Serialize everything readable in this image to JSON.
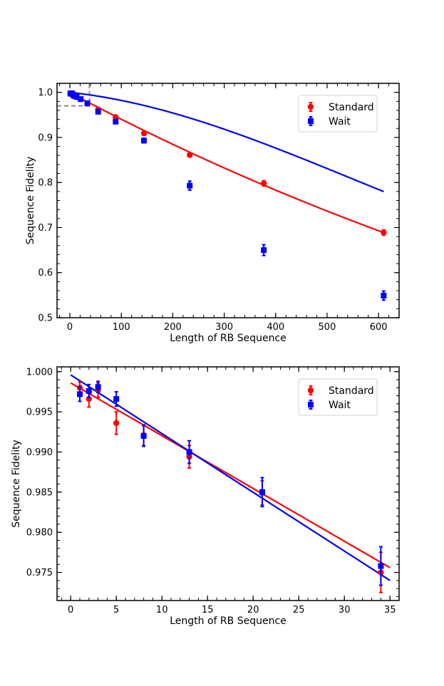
{
  "chart_data": [
    {
      "type": "scatter",
      "xlabel": "Length of RB Sequence",
      "ylabel": "Sequence Fidelity",
      "xlim": [
        -25,
        640
      ],
      "ylim": [
        0.5,
        1.02
      ],
      "xticks": [
        0,
        100,
        200,
        300,
        400,
        500,
        600
      ],
      "yticks": [
        0.5,
        0.6,
        0.7,
        0.8,
        0.9,
        1.0
      ],
      "xtick_labels": [
        "0",
        "100",
        "200",
        "300",
        "400",
        "500",
        "600"
      ],
      "ytick_labels": [
        "0.5",
        "0.6",
        "0.7",
        "0.8",
        "0.9",
        "1.0"
      ],
      "inset_marker": {
        "x_max": 38,
        "y_min": 0.97
      },
      "legend": {
        "position": "top-right",
        "entries": [
          "Standard",
          "Wait"
        ]
      },
      "series": [
        {
          "name": "Standard",
          "color": "#ff0000",
          "marker": "circle",
          "x": [
            1,
            2,
            3,
            5,
            8,
            13,
            21,
            34,
            55,
            89,
            144,
            233,
            377,
            610
          ],
          "y": [
            0.998,
            0.9967,
            0.9977,
            0.9936,
            0.992,
            0.9895,
            0.985,
            0.975,
            0.962,
            0.945,
            0.909,
            0.861,
            0.798,
            0.689
          ],
          "err": [
            0.002,
            0.002,
            0.002,
            0.002,
            0.002,
            0.002,
            0.002,
            0.003,
            0.003,
            0.004,
            0.004,
            0.004,
            0.006,
            0.006
          ],
          "fit": {
            "kind": "exponential",
            "A": 0.9995,
            "p": 0.99939
          }
        },
        {
          "name": "Wait",
          "color": "#0000ff",
          "marker": "square",
          "x": [
            1,
            2,
            3,
            5,
            8,
            13,
            21,
            34,
            55,
            89,
            144,
            233,
            377,
            610
          ],
          "y": [
            0.9972,
            0.9976,
            0.9981,
            0.9966,
            0.992,
            0.99,
            0.985,
            0.9758,
            0.957,
            0.935,
            0.893,
            0.793,
            0.65,
            0.549
          ],
          "err": [
            0.002,
            0.002,
            0.002,
            0.002,
            0.002,
            0.002,
            0.002,
            0.003,
            0.004,
            0.004,
            0.005,
            0.01,
            0.012,
            0.01
          ],
          "fit": {
            "kind": "gaussian_decay",
            "a": 0.5,
            "b": 0.5,
            "k": 1.15e-06,
            "r": 0.99975
          }
        }
      ]
    },
    {
      "type": "scatter",
      "xlabel": "Length of RB Sequence",
      "ylabel": "Sequence Fidelity",
      "xlim": [
        -1.5,
        36
      ],
      "ylim": [
        0.9715,
        1.0006
      ],
      "xticks": [
        0,
        5,
        10,
        15,
        20,
        25,
        30,
        35
      ],
      "yticks": [
        0.975,
        0.98,
        0.985,
        0.99,
        0.995,
        1.0
      ],
      "xtick_labels": [
        "0",
        "5",
        "10",
        "15",
        "20",
        "25",
        "30",
        "35"
      ],
      "ytick_labels": [
        "0.975",
        "0.980",
        "0.985",
        "0.990",
        "0.995",
        "1.000"
      ],
      "legend": {
        "position": "top-right",
        "entries": [
          "Standard",
          "Wait"
        ]
      },
      "series": [
        {
          "name": "Standard",
          "color": "#ff0000",
          "marker": "circle",
          "x": [
            1,
            2,
            3,
            5,
            8,
            13,
            21,
            34
          ],
          "y": [
            0.998,
            0.9966,
            0.9977,
            0.9936,
            0.9921,
            0.9894,
            0.9849,
            0.975
          ],
          "err": [
            0.0007,
            0.001,
            0.0009,
            0.0014,
            0.0013,
            0.0014,
            0.0015,
            0.0025
          ],
          "fit": {
            "kind": "linear",
            "x": [
              0,
              35
            ],
            "y": [
              0.9986,
              0.9756
            ]
          }
        },
        {
          "name": "Wait",
          "color": "#0000ff",
          "marker": "square",
          "x": [
            1,
            2,
            3,
            5,
            8,
            13,
            21,
            34
          ],
          "y": [
            0.9972,
            0.9976,
            0.9981,
            0.9966,
            0.992,
            0.99,
            0.985,
            0.9758
          ],
          "err": [
            0.0009,
            0.0008,
            0.0007,
            0.0009,
            0.0013,
            0.0014,
            0.0018,
            0.0024
          ],
          "fit": {
            "kind": "linear",
            "x": [
              0,
              35
            ],
            "y": [
              0.9996,
              0.974
            ]
          }
        }
      ]
    }
  ]
}
